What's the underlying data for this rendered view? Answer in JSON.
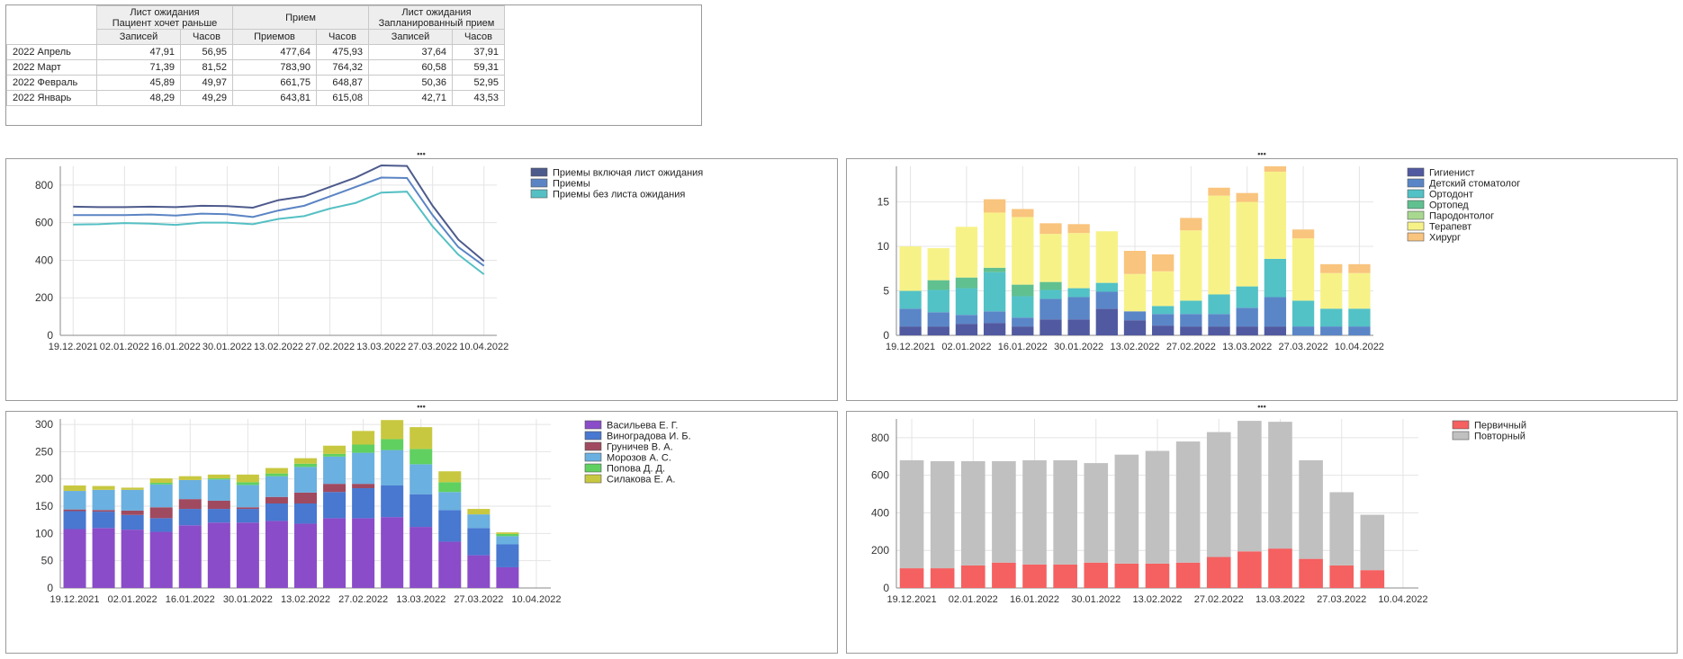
{
  "table": {
    "groups": [
      {
        "line1": "Лист ожидания",
        "line2": "Пациент хочет раньше"
      },
      {
        "line1": "Прием",
        "line2": ""
      },
      {
        "line1": "Лист ожидания",
        "line2": "Запланированный прием"
      }
    ],
    "subheaders": [
      "Записей",
      "Часов",
      "Приемов",
      "Часов",
      "Записей",
      "Часов"
    ],
    "rows": [
      {
        "label": "2022 Апрель",
        "values": [
          "47,91",
          "56,95",
          "477,64",
          "475,93",
          "37,64",
          "37,91"
        ]
      },
      {
        "label": "2022 Март",
        "values": [
          "71,39",
          "81,52",
          "783,90",
          "764,32",
          "60,58",
          "59,31"
        ]
      },
      {
        "label": "2022 Февраль",
        "values": [
          "45,89",
          "49,97",
          "661,75",
          "648,87",
          "50,36",
          "52,95"
        ]
      },
      {
        "label": "2022 Январь",
        "values": [
          "48,29",
          "49,29",
          "643,81",
          "615,08",
          "42,71",
          "43,53"
        ]
      }
    ]
  },
  "splitter_glyph": "•••",
  "chart_data": [
    {
      "type": "line",
      "x": [
        "19.12.2021",
        "26.12.2021",
        "02.01.2022",
        "09.01.2022",
        "16.01.2022",
        "23.01.2022",
        "30.01.2022",
        "06.02.2022",
        "13.02.2022",
        "20.02.2022",
        "27.02.2022",
        "06.03.2022",
        "13.03.2022",
        "20.03.2022",
        "27.03.2022",
        "03.04.2022",
        "10.04.2022"
      ],
      "xticks": [
        "19.12.2021",
        "02.01.2022",
        "16.01.2022",
        "30.01.2022",
        "13.02.2022",
        "27.02.2022",
        "13.03.2022",
        "27.03.2022",
        "10.04.2022"
      ],
      "ylim": [
        0,
        900
      ],
      "yticks": [
        0,
        200,
        400,
        600,
        800
      ],
      "legend_position": "top-right",
      "series": [
        {
          "name": "Приемы включая лист ожидания",
          "color": "#4d5a8c",
          "values": [
            685,
            683,
            683,
            685,
            683,
            690,
            688,
            680,
            720,
            740,
            790,
            840,
            905,
            902,
            690,
            510,
            395
          ]
        },
        {
          "name": "Приемы",
          "color": "#5b84c4",
          "values": [
            640,
            640,
            640,
            643,
            638,
            648,
            645,
            630,
            665,
            690,
            740,
            790,
            840,
            838,
            640,
            470,
            370
          ]
        },
        {
          "name": "Приемы без листа ожидания",
          "color": "#55c0c4",
          "values": [
            590,
            592,
            598,
            595,
            588,
            600,
            600,
            592,
            620,
            635,
            675,
            705,
            760,
            765,
            580,
            430,
            325
          ]
        }
      ]
    },
    {
      "type": "bar",
      "stacked": true,
      "categories": [
        "19.12.2021",
        "26.12.2021",
        "02.01.2022",
        "09.01.2022",
        "16.01.2022",
        "23.01.2022",
        "30.01.2022",
        "06.02.2022",
        "13.02.2022",
        "20.02.2022",
        "27.02.2022",
        "06.03.2022",
        "13.03.2022",
        "20.03.2022",
        "27.03.2022",
        "03.04.2022",
        "10.04.2022"
      ],
      "xticks": [
        "19.12.2021",
        "02.01.2022",
        "16.01.2022",
        "30.01.2022",
        "13.02.2022",
        "27.02.2022",
        "13.03.2022",
        "27.03.2022",
        "10.04.2022"
      ],
      "ylim": [
        0,
        19
      ],
      "yticks": [
        0,
        5,
        10,
        15
      ],
      "legend_position": "top-right",
      "series": [
        {
          "name": "Гигиенист",
          "color": "#515aa0",
          "values": [
            1,
            1,
            1.3,
            1.4,
            1,
            1.8,
            1.8,
            3,
            1.7,
            1.1,
            1,
            1,
            1,
            1,
            0,
            0,
            0
          ]
        },
        {
          "name": "Детский стоматолог",
          "color": "#5a86c8",
          "values": [
            2,
            1.6,
            1,
            1.3,
            1,
            2.3,
            2.5,
            1.9,
            1,
            1.3,
            1.4,
            1.4,
            2.1,
            3.3,
            1,
            1,
            1
          ]
        },
        {
          "name": "Ортодонт",
          "color": "#52c2c6",
          "values": [
            2,
            2.5,
            3,
            4.4,
            2.4,
            1,
            1,
            1,
            0,
            0.9,
            1.5,
            2.2,
            2.4,
            4.3,
            2.9,
            2,
            2
          ]
        },
        {
          "name": "Ортопед",
          "color": "#60c090",
          "values": [
            0,
            1.1,
            1.2,
            0.5,
            1.3,
            0.9,
            0,
            0,
            0,
            0,
            0,
            0,
            0,
            0,
            0,
            0,
            0
          ]
        },
        {
          "name": "Пародонтолог",
          "color": "#a8d890",
          "values": [
            0,
            0,
            0,
            0,
            0,
            0,
            0,
            0,
            0,
            0,
            0,
            0,
            0,
            0,
            0,
            0,
            0
          ]
        },
        {
          "name": "Терапевт",
          "color": "#f7f288",
          "values": [
            5,
            3.6,
            5.7,
            6.2,
            7.6,
            5.4,
            6.2,
            5.8,
            4.2,
            3.9,
            7.9,
            11.1,
            9.5,
            9.8,
            7,
            4,
            4
          ]
        },
        {
          "name": "Хирург",
          "color": "#f9c47e",
          "values": [
            0,
            0,
            0,
            1.5,
            0.9,
            1.2,
            1,
            0,
            2.6,
            1.9,
            1.4,
            0.9,
            1,
            0.6,
            1,
            1,
            1
          ]
        }
      ]
    },
    {
      "type": "bar",
      "stacked": true,
      "categories": [
        "19.12.2021",
        "26.12.2021",
        "02.01.2022",
        "09.01.2022",
        "16.01.2022",
        "23.01.2022",
        "30.01.2022",
        "06.02.2022",
        "13.02.2022",
        "20.02.2022",
        "27.02.2022",
        "06.03.2022",
        "13.03.2022",
        "20.03.2022",
        "27.03.2022",
        "03.04.2022",
        "10.04.2022"
      ],
      "xticks": [
        "19.12.2021",
        "02.01.2022",
        "16.01.2022",
        "30.01.2022",
        "13.02.2022",
        "27.02.2022",
        "13.03.2022",
        "27.03.2022",
        "10.04.2022"
      ],
      "ylim": [
        0,
        310
      ],
      "yticks": [
        0,
        50,
        100,
        150,
        200,
        250,
        300
      ],
      "legend_position": "top-right",
      "series": [
        {
          "name": "Васильева Е. Г.",
          "color": "#8a4cc8",
          "values": [
            108,
            110,
            107,
            103,
            115,
            120,
            120,
            123,
            118,
            128,
            128,
            130,
            112,
            85,
            60,
            38,
            0
          ]
        },
        {
          "name": "Виноградова И. Б.",
          "color": "#4878d0",
          "values": [
            33,
            30,
            27,
            25,
            30,
            25,
            25,
            32,
            37,
            48,
            55,
            58,
            60,
            58,
            50,
            42,
            0
          ]
        },
        {
          "name": "Груничев В. А.",
          "color": "#a04a60",
          "values": [
            3,
            3,
            8,
            20,
            18,
            15,
            3,
            12,
            20,
            15,
            8,
            0,
            0,
            0,
            0,
            0,
            0
          ]
        },
        {
          "name": "Морозов А. С.",
          "color": "#6ab0e0",
          "values": [
            34,
            37,
            38,
            42,
            35,
            39,
            41,
            38,
            47,
            50,
            57,
            65,
            55,
            33,
            25,
            15,
            0
          ]
        },
        {
          "name": "Попова Д. Д.",
          "color": "#60d060",
          "values": [
            0,
            0,
            0,
            3,
            0,
            2,
            5,
            5,
            6,
            5,
            15,
            20,
            28,
            18,
            0,
            4,
            0
          ]
        },
        {
          "name": "Силакова Е. А.",
          "color": "#c8c840",
          "values": [
            10,
            7,
            4,
            8,
            7,
            7,
            14,
            10,
            10,
            15,
            25,
            35,
            40,
            20,
            10,
            3,
            0
          ]
        }
      ]
    },
    {
      "type": "bar",
      "stacked": true,
      "categories": [
        "19.12.2021",
        "26.12.2021",
        "02.01.2022",
        "09.01.2022",
        "16.01.2022",
        "23.01.2022",
        "30.01.2022",
        "06.02.2022",
        "13.02.2022",
        "20.02.2022",
        "27.02.2022",
        "06.03.2022",
        "13.03.2022",
        "20.03.2022",
        "27.03.2022",
        "03.04.2022",
        "10.04.2022"
      ],
      "xticks": [
        "19.12.2021",
        "02.01.2022",
        "16.01.2022",
        "30.01.2022",
        "13.02.2022",
        "27.02.2022",
        "13.03.2022",
        "27.03.2022",
        "10.04.2022"
      ],
      "ylim": [
        0,
        900
      ],
      "yticks": [
        0,
        200,
        400,
        600,
        800
      ],
      "legend_position": "top-right",
      "series": [
        {
          "name": "Первичный",
          "color": "#f56060",
          "values": [
            105,
            105,
            120,
            135,
            125,
            125,
            135,
            130,
            130,
            135,
            165,
            195,
            210,
            155,
            120,
            95,
            0
          ]
        },
        {
          "name": "Повторный",
          "color": "#c0c0c0",
          "values": [
            575,
            570,
            555,
            540,
            555,
            555,
            530,
            580,
            600,
            645,
            665,
            695,
            675,
            525,
            390,
            295,
            0
          ]
        }
      ]
    }
  ]
}
